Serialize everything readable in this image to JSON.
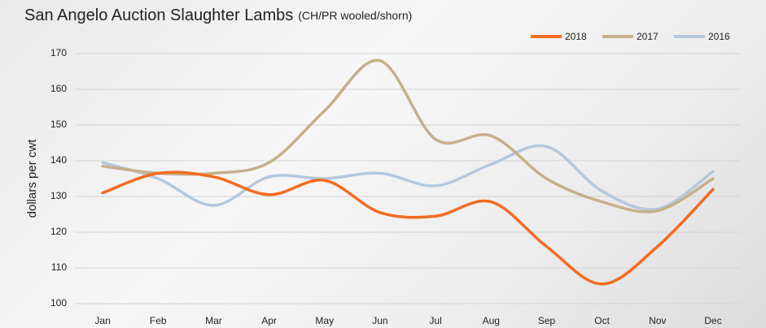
{
  "chart_data": {
    "type": "line",
    "title": "San Angelo Auction Slaughter Lambs",
    "subtitle": "(CH/PR wooled/shorn)",
    "y_label": "dollars per cwt",
    "categories": [
      "Jan",
      "Feb",
      "Mar",
      "Apr",
      "May",
      "Jun",
      "Jul",
      "Aug",
      "Sep",
      "Oct",
      "Nov",
      "Dec"
    ],
    "series": [
      {
        "name": "2018",
        "color": "#f26b21",
        "values": [
          131,
          136.5,
          135.5,
          130.5,
          134.5,
          125.5,
          124.5,
          128.5,
          116,
          105.5,
          116,
          132
        ]
      },
      {
        "name": "2017",
        "color": "#c4b08a",
        "values": [
          138.5,
          136.5,
          136.5,
          139.5,
          154,
          168,
          146,
          147,
          135,
          128.5,
          126,
          135
        ]
      },
      {
        "name": "2016",
        "color": "#b4c7dc",
        "values": [
          139.5,
          135,
          127.5,
          135.5,
          135,
          136.5,
          133,
          139,
          144,
          131.5,
          126.5,
          137
        ]
      }
    ],
    "ylim": [
      100,
      170
    ],
    "yticks": [
      100,
      110,
      120,
      130,
      140,
      150,
      160,
      170
    ],
    "grid": true,
    "legend": "top-right"
  }
}
